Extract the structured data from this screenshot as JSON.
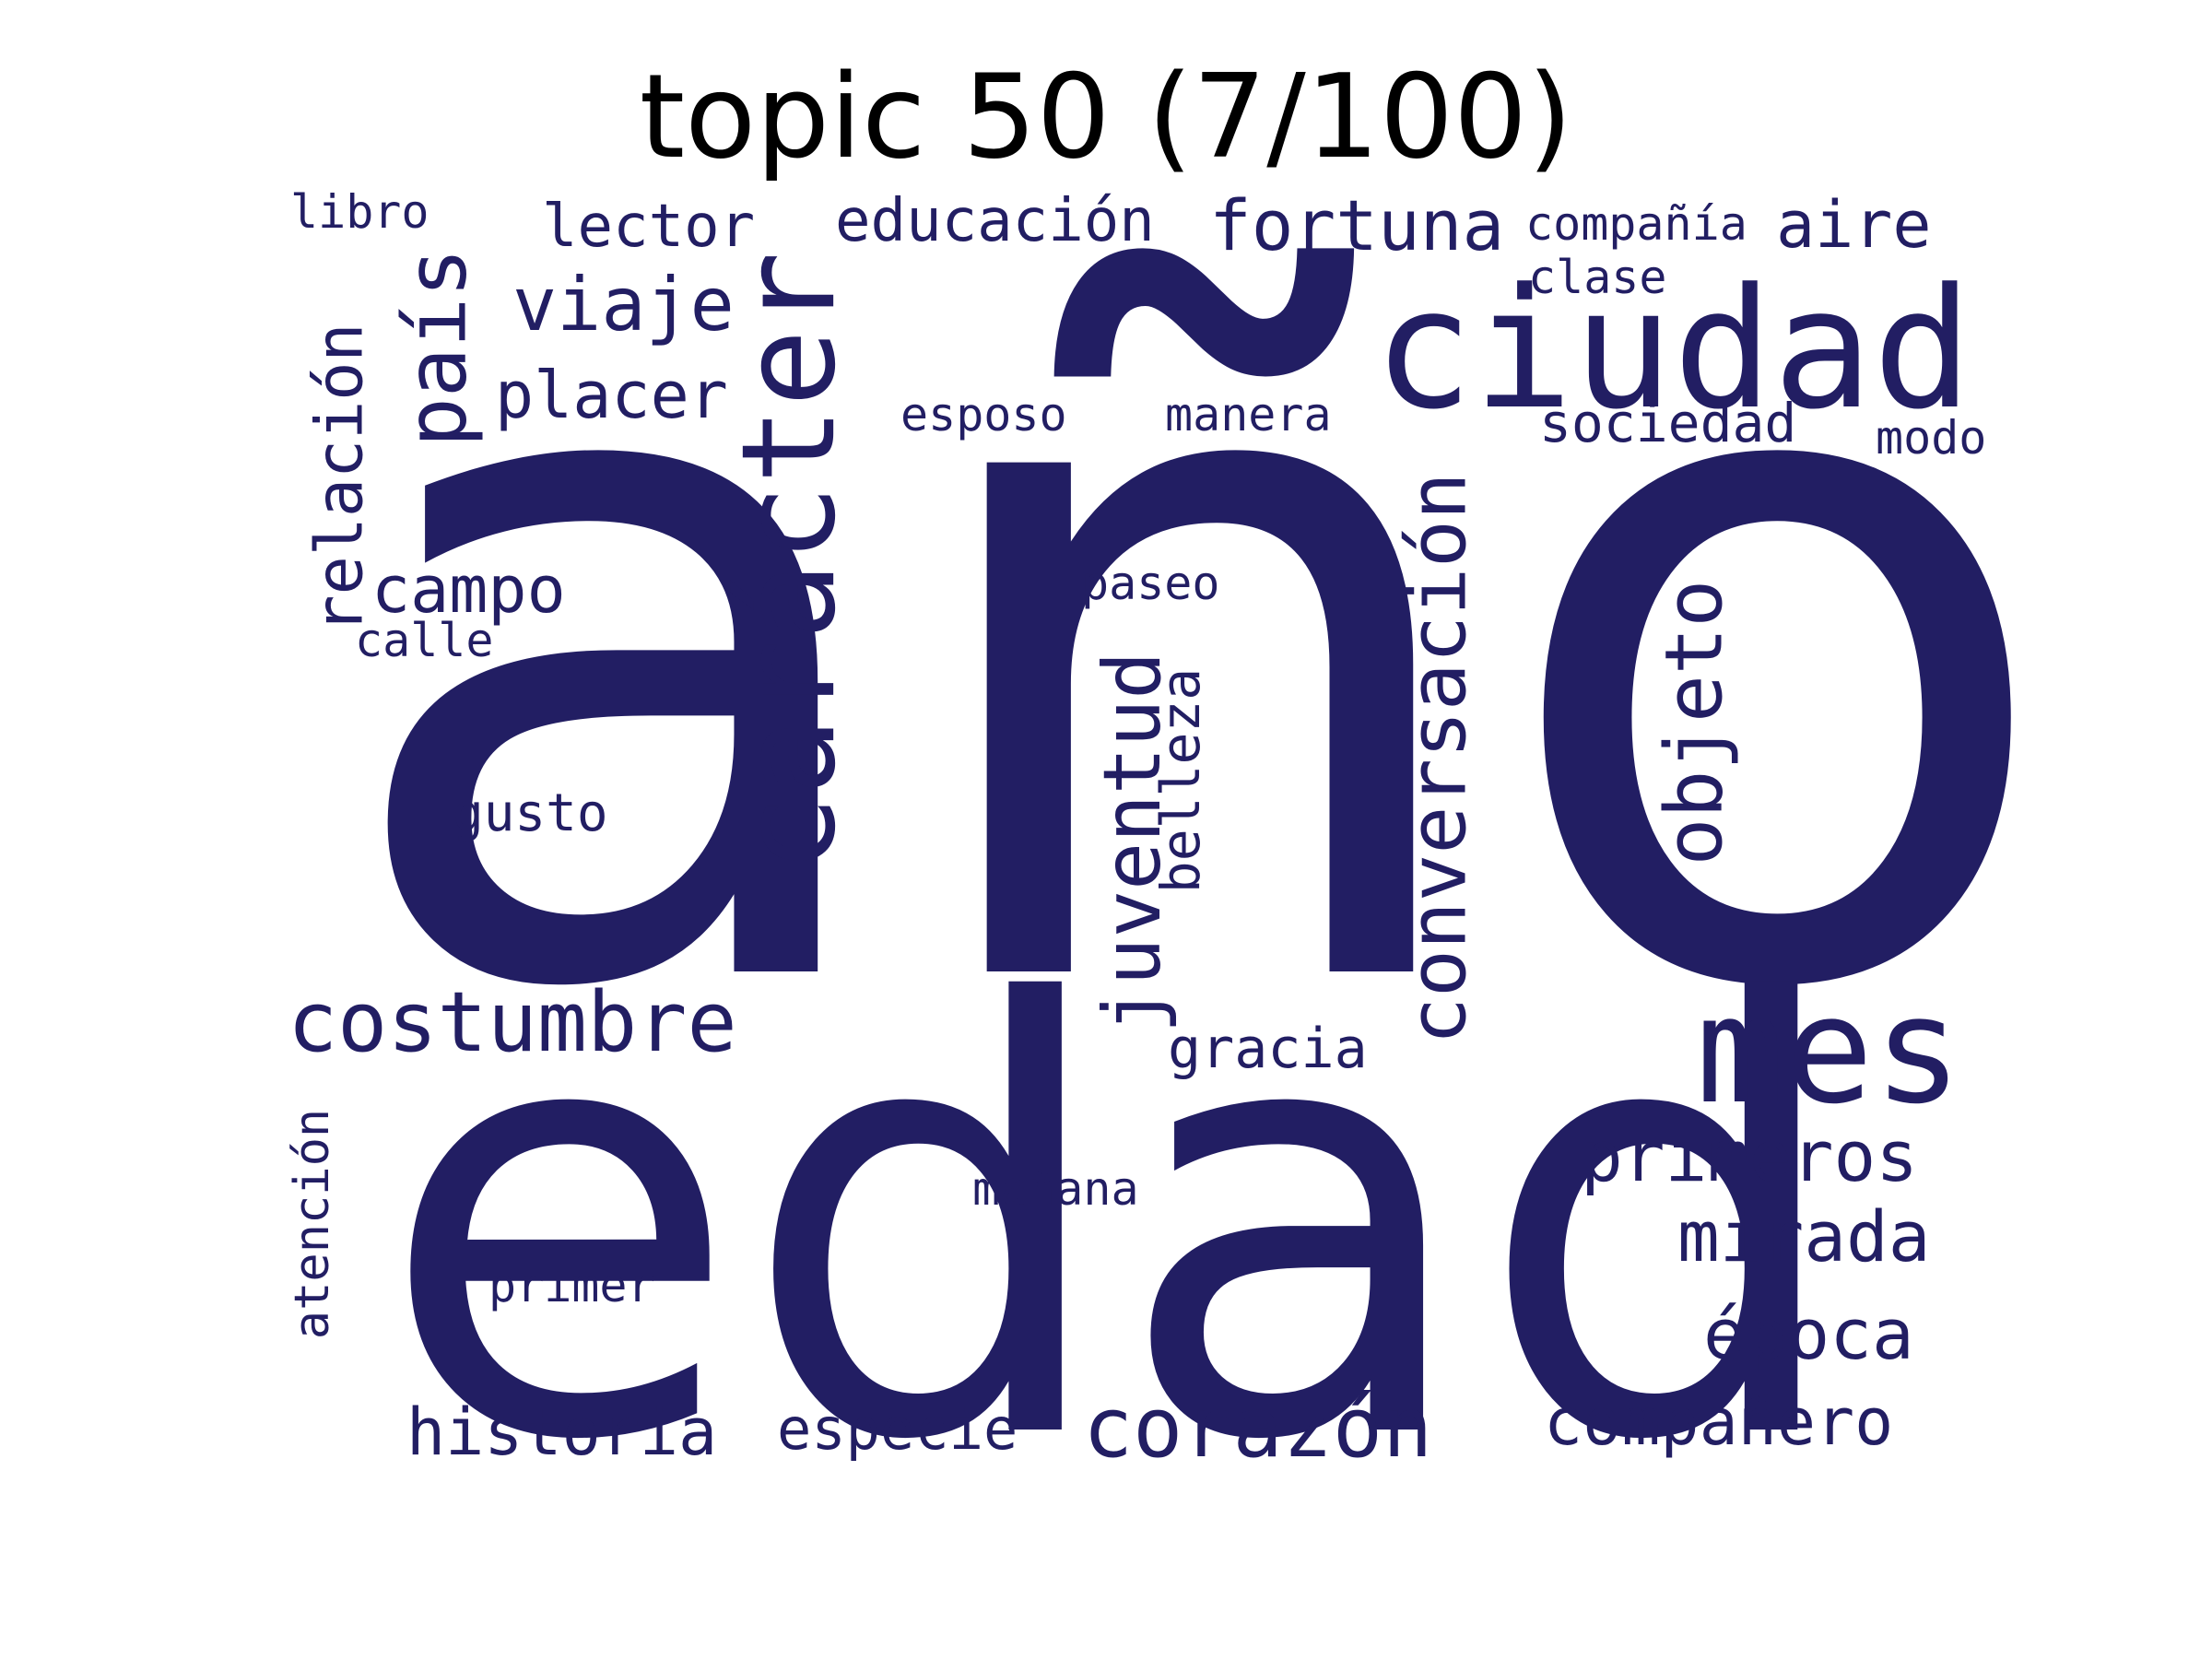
{
  "title": "topic 50 (7/100)",
  "word_color": "#221e63",
  "words": [
    {
      "text": "año"
    },
    {
      "text": "edad"
    },
    {
      "text": "carácter"
    },
    {
      "text": "ciudad"
    },
    {
      "text": "mes"
    },
    {
      "text": "conversación"
    },
    {
      "text": "objeto"
    },
    {
      "text": "juventud"
    },
    {
      "text": "país"
    },
    {
      "text": "costumbre"
    },
    {
      "text": "corazón"
    },
    {
      "text": "fortuna"
    },
    {
      "text": "viaje"
    },
    {
      "text": "primeros"
    },
    {
      "text": "mirada"
    },
    {
      "text": "época"
    },
    {
      "text": "relación"
    },
    {
      "text": "historia"
    },
    {
      "text": "compañero"
    },
    {
      "text": "placer"
    },
    {
      "text": "campo"
    },
    {
      "text": "aire"
    },
    {
      "text": "educación"
    },
    {
      "text": "lector"
    },
    {
      "text": "belleza"
    },
    {
      "text": "especie"
    },
    {
      "text": "gracia"
    },
    {
      "text": "sociedad"
    },
    {
      "text": "atención"
    },
    {
      "text": "gusto"
    },
    {
      "text": "compañía"
    },
    {
      "text": "libro"
    },
    {
      "text": "clase"
    },
    {
      "text": "esposo"
    },
    {
      "text": "manera"
    },
    {
      "text": "modo"
    },
    {
      "text": "paseo"
    },
    {
      "text": "calle"
    },
    {
      "text": "mañana"
    },
    {
      "text": "primer"
    }
  ]
}
